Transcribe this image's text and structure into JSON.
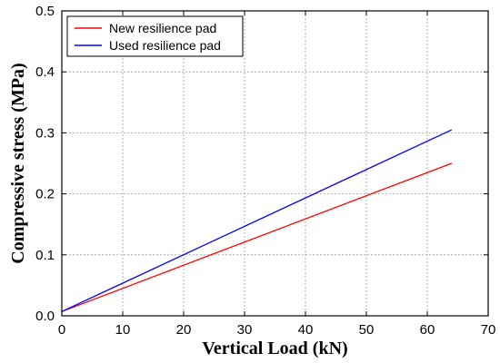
{
  "chart_data": {
    "type": "line",
    "xlabel": "Vertical Load (kN)",
    "ylabel": "Compressive stress (MPa)",
    "xlim": [
      0,
      70
    ],
    "ylim": [
      0,
      0.5
    ],
    "xticks": [
      0,
      10,
      20,
      30,
      40,
      50,
      60,
      70
    ],
    "yticks": [
      0.0,
      0.1,
      0.2,
      0.3,
      0.4,
      0.5
    ],
    "xtick_labels": [
      "0",
      "10",
      "20",
      "30",
      "40",
      "50",
      "60",
      "70"
    ],
    "ytick_labels": [
      "0.0",
      "0.1",
      "0.2",
      "0.3",
      "0.4",
      "0.5"
    ],
    "grid": true,
    "legend_position": "top-left",
    "series": [
      {
        "name": "New resilience pad",
        "color": "#ff0000",
        "x": [
          0,
          64
        ],
        "y": [
          0.007,
          0.25
        ]
      },
      {
        "name": "Used resilience pad",
        "color": "#0000ff",
        "x": [
          0,
          64
        ],
        "y": [
          0.007,
          0.305
        ]
      }
    ]
  }
}
